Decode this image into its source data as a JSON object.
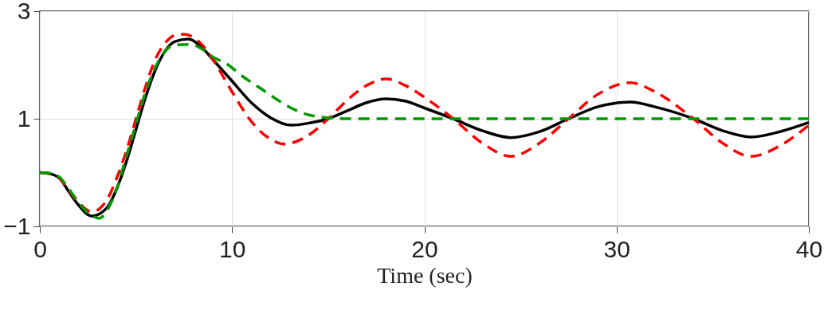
{
  "chart_data": {
    "type": "line",
    "xlabel": "Time (sec)",
    "xlim": [
      0,
      40
    ],
    "xticks": [
      0,
      10,
      20,
      30,
      40
    ],
    "ylim": [
      -1,
      3
    ],
    "yticks": [
      -1,
      1,
      3
    ],
    "grid": true,
    "series": [
      {
        "color": "#000000",
        "line_style": "solid",
        "x": [
          0,
          0.5,
          1,
          1.5,
          2,
          2.7,
          3.5,
          4,
          4.5,
          5,
          5.5,
          6,
          6.5,
          7,
          7.7,
          8.5,
          9,
          10,
          11,
          12,
          13.1,
          14,
          15,
          16,
          17,
          18,
          19,
          20,
          21.5,
          23,
          24.5,
          26,
          27.5,
          29,
          30.7,
          32,
          34,
          35.5,
          37,
          38.5,
          40
        ],
        "values": [
          0,
          -0.02,
          -0.1,
          -0.35,
          -0.6,
          -0.81,
          -0.65,
          -0.3,
          0.2,
          0.8,
          1.4,
          1.9,
          2.25,
          2.43,
          2.48,
          2.3,
          2.1,
          1.7,
          1.3,
          1.02,
          0.88,
          0.92,
          1.0,
          1.15,
          1.3,
          1.37,
          1.33,
          1.2,
          1.0,
          0.78,
          0.65,
          0.76,
          1.0,
          1.22,
          1.31,
          1.22,
          1.0,
          0.78,
          0.66,
          0.76,
          0.93
        ]
      },
      {
        "color": "#ff0000",
        "line_style": "dashed",
        "x": [
          0,
          0.5,
          1,
          1.5,
          2,
          2.7,
          3.5,
          4,
          4.5,
          5,
          5.5,
          6,
          6.5,
          7,
          7.5,
          8.5,
          9,
          10,
          11,
          12,
          12.7,
          14,
          15,
          16,
          17,
          18,
          19,
          20,
          21.5,
          23,
          24.5,
          26,
          27.5,
          29,
          30.7,
          32,
          34,
          35.5,
          37,
          38.5,
          40
        ],
        "values": [
          0,
          -0.02,
          -0.1,
          -0.33,
          -0.55,
          -0.73,
          -0.5,
          -0.1,
          0.4,
          1.0,
          1.6,
          2.1,
          2.4,
          2.55,
          2.57,
          2.35,
          2.1,
          1.5,
          0.95,
          0.62,
          0.53,
          0.7,
          1.0,
          1.35,
          1.62,
          1.74,
          1.62,
          1.4,
          1.0,
          0.55,
          0.3,
          0.55,
          1.0,
          1.45,
          1.67,
          1.5,
          1.0,
          0.55,
          0.3,
          0.5,
          0.88
        ]
      },
      {
        "color": "#009900",
        "line_style": "dashed",
        "x": [
          0,
          0.5,
          1,
          1.5,
          2,
          2.5,
          3.1,
          3.5,
          4,
          4.5,
          5,
          5.5,
          6,
          6.5,
          7,
          7.9,
          8.5,
          9,
          9.8,
          10.5,
          11.5,
          12.5,
          13.3,
          14,
          14.9,
          16,
          20,
          25,
          30,
          35,
          40
        ],
        "values": [
          0,
          -0.01,
          -0.08,
          -0.3,
          -0.55,
          -0.75,
          -0.85,
          -0.7,
          -0.3,
          0.3,
          0.9,
          1.5,
          1.95,
          2.25,
          2.37,
          2.38,
          2.28,
          2.15,
          2.0,
          1.8,
          1.56,
          1.32,
          1.16,
          1.07,
          1.02,
          1.0,
          1.0,
          1.0,
          1.0,
          1.0,
          1.0
        ]
      }
    ]
  }
}
